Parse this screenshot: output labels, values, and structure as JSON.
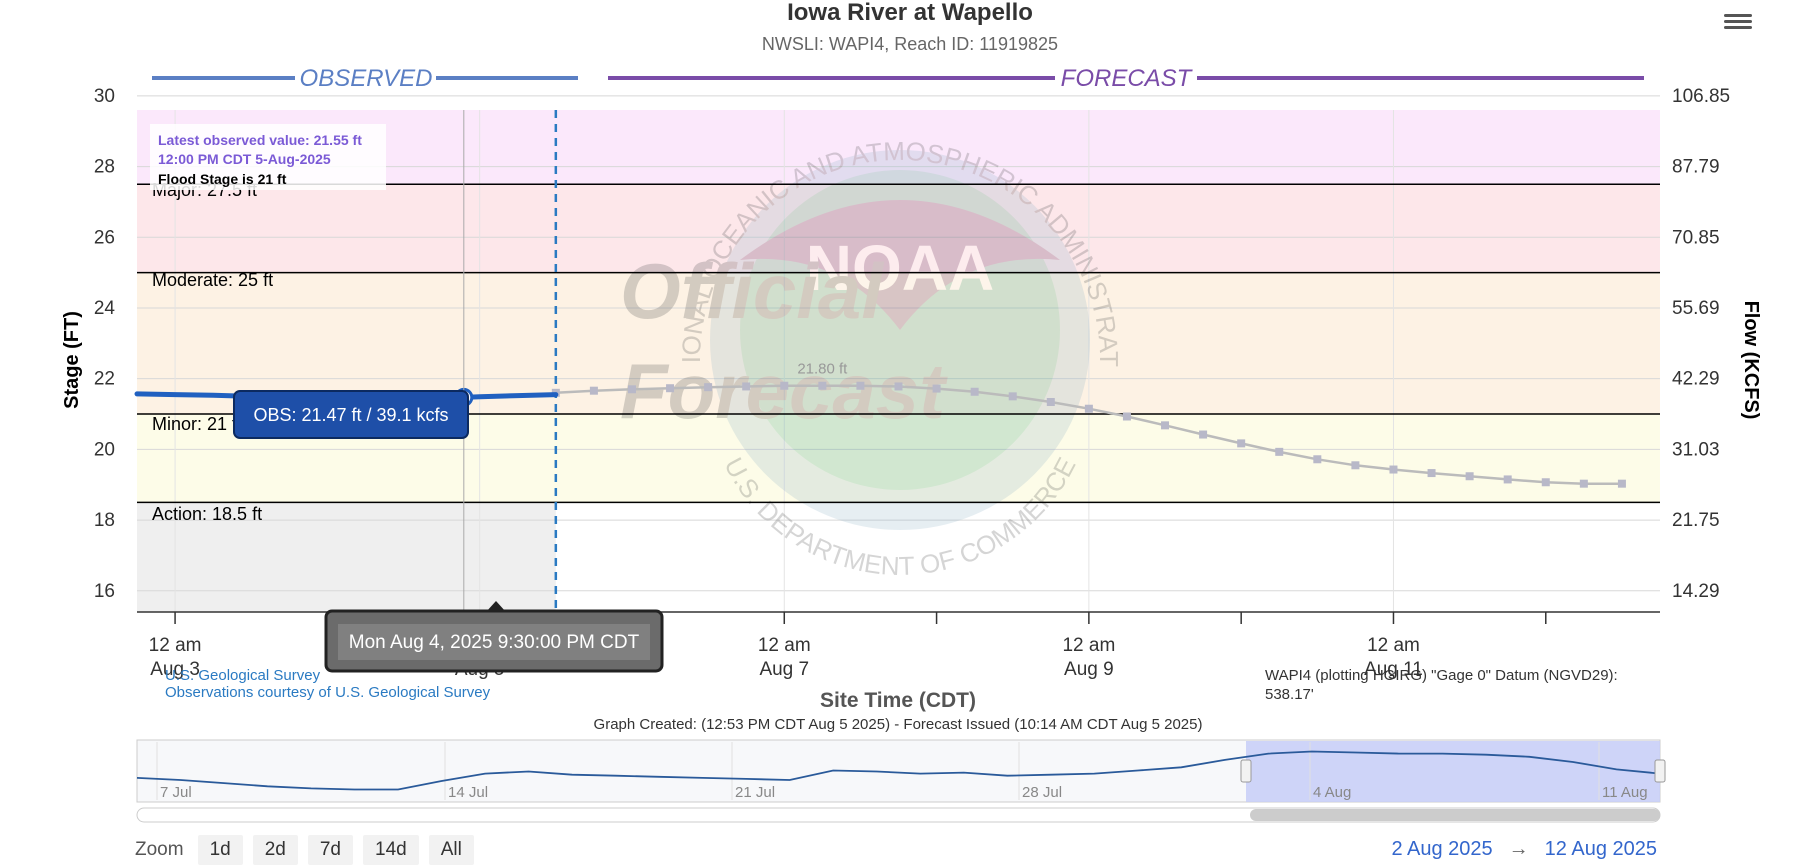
{
  "colors": {
    "observed": "#2060c0",
    "forecast": "#7a4ca8",
    "forecast_line": "#bbbbbb",
    "major_band": "#fbe8fb",
    "moderate_band": "#fde7ea",
    "minor_band": "#fdf2e4",
    "action_band": "#fdfce8",
    "below_band": "#efefef",
    "latest_text": "#7b5ad6",
    "range_link": "#3366cc"
  },
  "header": {
    "title": "Iowa River at Wapello",
    "subtitle": "NWSLI: WAPI4, Reach ID: 11919825",
    "menu_icon": "hamburger-menu-icon"
  },
  "labels": {
    "observed": "OBSERVED",
    "forecast": "FORECAST",
    "latest_line1": "Latest observed value: 21.55 ft",
    "latest_line2": "12:00 PM CDT 5-Aug-2025",
    "flood_stage_note": "Flood Stage is 21 ft",
    "major": "Major: 27.5 ft",
    "moderate": "Moderate: 25 ft",
    "minor": "Minor: 21 ft",
    "action": "Action: 18.5 ft",
    "peak_label": "21.80 ft",
    "usgs_line1": "U.S. Geological Survey",
    "usgs_line2": "Observations courtesy of U.S. Geological Survey",
    "datum_line1": "WAPI4 (plotting HGIRG) \"Gage 0\" Datum (NGVD29):",
    "datum_line2": "538.17'",
    "graph_created": "Graph Created: (12:53 PM CDT Aug 5 2025) - Forecast Issued (10:14 AM CDT Aug 5 2025)",
    "tooltip_value": "OBS: 21.47 ft / 39.1 kcfs",
    "crosshair_time": "Mon Aug 4, 2025 9:30:00 PM CDT",
    "watermark_official": "Official",
    "watermark_forecast": "Forecast",
    "watermark_ring_top": "NATIONAL OCEANIC AND ATMOSPHERIC ADMINISTRATION",
    "watermark_ring_bottom": "U.S. DEPARTMENT OF COMMERCE",
    "watermark_noaa": "NOAA"
  },
  "zoom": {
    "label": "Zoom",
    "buttons": [
      "1d",
      "2d",
      "7d",
      "14d",
      "All"
    ]
  },
  "range": {
    "from": "2 Aug 2025",
    "arrow": "→",
    "to": "12 Aug 2025"
  },
  "chart_data": {
    "type": "line",
    "title": "Iowa River at Wapello",
    "subtitle": "NWSLI: WAPI4, Reach ID: 11919825",
    "xlabel": "Site Time (CDT)",
    "ylabel": "Stage (FT)",
    "y2label": "Flow (KCFS)",
    "ylim": [
      15.4,
      29.6
    ],
    "yticks": [
      16,
      18,
      20,
      22,
      24,
      26,
      28,
      30
    ],
    "y2ticks": [
      "14.29",
      "21.75",
      "31.03",
      "42.29",
      "55.69",
      "70.85",
      "87.79",
      "106.85"
    ],
    "xlim": [
      "2025-08-02T18:00",
      "2025-08-12T18:00"
    ],
    "xticks": [
      {
        "line1": "12 am",
        "line2": "Aug 3",
        "t": "2025-08-03T00:00"
      },
      {
        "line1": "12 am",
        "line2": "Aug 5",
        "t": "2025-08-05T00:00"
      },
      {
        "line1": "12 am",
        "line2": "Aug 7",
        "t": "2025-08-07T00:00"
      },
      {
        "line1": "12 am",
        "line2": "Aug 9",
        "t": "2025-08-09T00:00"
      },
      {
        "line1": "12 am",
        "line2": "Aug 11",
        "t": "2025-08-11T00:00"
      }
    ],
    "minor_xticks": [
      "2025-08-04T00:00",
      "2025-08-06T00:00",
      "2025-08-08T00:00",
      "2025-08-10T00:00",
      "2025-08-12T00:00"
    ],
    "thresholds": [
      {
        "name": "Major",
        "value": 27.5
      },
      {
        "name": "Moderate",
        "value": 25
      },
      {
        "name": "Minor",
        "value": 21
      },
      {
        "name": "Action",
        "value": 18.5
      }
    ],
    "forecast_start": "2025-08-05T12:00",
    "series": [
      {
        "name": "Observed",
        "points": [
          [
            "2025-08-02T18:00",
            21.57
          ],
          [
            "2025-08-03T00:00",
            21.55
          ],
          [
            "2025-08-03T06:00",
            21.53
          ],
          [
            "2025-08-03T12:00",
            21.5
          ],
          [
            "2025-08-03T18:00",
            21.47
          ],
          [
            "2025-08-04T00:00",
            21.45
          ],
          [
            "2025-08-04T06:00",
            21.43
          ],
          [
            "2025-08-04T12:00",
            21.43
          ],
          [
            "2025-08-04T21:30",
            21.47
          ],
          [
            "2025-08-05T00:00",
            21.49
          ],
          [
            "2025-08-05T06:00",
            21.52
          ],
          [
            "2025-08-05T12:00",
            21.55
          ]
        ]
      },
      {
        "name": "Forecast",
        "points": [
          [
            "2025-08-05T12:00",
            21.6
          ],
          [
            "2025-08-05T18:00",
            21.66
          ],
          [
            "2025-08-06T00:00",
            21.7
          ],
          [
            "2025-08-06T06:00",
            21.73
          ],
          [
            "2025-08-06T12:00",
            21.76
          ],
          [
            "2025-08-06T18:00",
            21.78
          ],
          [
            "2025-08-07T00:00",
            21.8
          ],
          [
            "2025-08-07T06:00",
            21.8
          ],
          [
            "2025-08-07T12:00",
            21.8
          ],
          [
            "2025-08-07T18:00",
            21.78
          ],
          [
            "2025-08-08T00:00",
            21.72
          ],
          [
            "2025-08-08T06:00",
            21.63
          ],
          [
            "2025-08-08T12:00",
            21.5
          ],
          [
            "2025-08-08T18:00",
            21.34
          ],
          [
            "2025-08-09T00:00",
            21.15
          ],
          [
            "2025-08-09T06:00",
            20.93
          ],
          [
            "2025-08-09T12:00",
            20.68
          ],
          [
            "2025-08-09T18:00",
            20.42
          ],
          [
            "2025-08-10T00:00",
            20.17
          ],
          [
            "2025-08-10T06:00",
            19.93
          ],
          [
            "2025-08-10T12:00",
            19.72
          ],
          [
            "2025-08-10T18:00",
            19.55
          ],
          [
            "2025-08-11T00:00",
            19.43
          ],
          [
            "2025-08-11T06:00",
            19.33
          ],
          [
            "2025-08-11T12:00",
            19.24
          ],
          [
            "2025-08-11T18:00",
            19.15
          ],
          [
            "2025-08-12T00:00",
            19.07
          ],
          [
            "2025-08-12T06:00",
            19.03
          ],
          [
            "2025-08-12T12:00",
            19.03
          ]
        ]
      }
    ],
    "navigator": {
      "xticks": [
        "7 Jul",
        "14 Jul",
        "21 Jul",
        "28 Jul",
        "4 Aug",
        "11 Aug"
      ],
      "values": [
        20.6,
        20.4,
        20.1,
        19.8,
        19.6,
        19.5,
        19.5,
        20.3,
        21.0,
        21.2,
        20.9,
        20.8,
        20.7,
        20.6,
        20.5,
        20.4,
        21.3,
        21.2,
        21.0,
        21.1,
        20.8,
        20.9,
        21.0,
        21.3,
        21.6,
        22.3,
        22.9,
        23.1,
        23.0,
        22.9,
        22.9,
        22.8,
        22.6,
        22.1,
        21.4,
        21.0
      ]
    }
  }
}
